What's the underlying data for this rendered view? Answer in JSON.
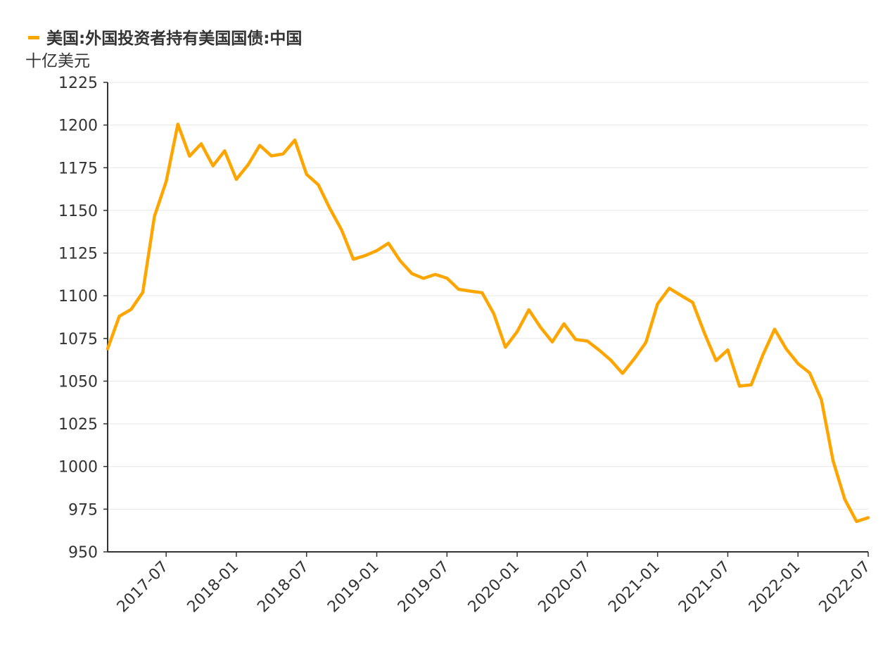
{
  "chart_data": {
    "type": "line",
    "title": "",
    "legend": {
      "placement": "top-left",
      "entries": [
        "美国:外国投资者持有美国国债:中国"
      ]
    },
    "ylabel": "十亿美元",
    "xlabel": "",
    "ylim": [
      950,
      1225
    ],
    "yticks": [
      "950",
      "975",
      "1000",
      "1025",
      "1050",
      "1075",
      "1100",
      "1125",
      "1150",
      "1175",
      "1200",
      "1225"
    ],
    "grid": true,
    "xticks": [
      "2017-07",
      "2018-01",
      "2018-07",
      "2019-01",
      "2019-07",
      "2020-01",
      "2020-07",
      "2021-01",
      "2021-07",
      "2022-01",
      "2022-07"
    ],
    "series": [
      {
        "name": "美国:外国投资者持有美国国债:中国",
        "color": "#FFA500",
        "x": [
          "2017-02",
          "2017-03",
          "2017-04",
          "2017-05",
          "2017-06",
          "2017-07",
          "2017-08",
          "2017-09",
          "2017-10",
          "2017-11",
          "2017-12",
          "2018-01",
          "2018-02",
          "2018-03",
          "2018-04",
          "2018-05",
          "2018-06",
          "2018-07",
          "2018-08",
          "2018-09",
          "2018-10",
          "2018-11",
          "2018-12",
          "2019-01",
          "2019-02",
          "2019-03",
          "2019-04",
          "2019-05",
          "2019-06",
          "2019-07",
          "2019-08",
          "2019-09",
          "2019-10",
          "2019-11",
          "2019-12",
          "2020-01",
          "2020-02",
          "2020-03",
          "2020-04",
          "2020-05",
          "2020-06",
          "2020-07",
          "2020-08",
          "2020-09",
          "2020-10",
          "2020-11",
          "2020-12",
          "2021-01",
          "2021-02",
          "2021-03",
          "2021-04",
          "2021-05",
          "2021-06",
          "2021-07",
          "2021-08",
          "2021-09",
          "2021-10",
          "2021-11",
          "2021-12",
          "2022-01",
          "2022-02",
          "2022-03",
          "2022-04",
          "2022-05",
          "2022-06",
          "2022-07"
        ],
        "values": [
          1069.0,
          1088.0,
          1092.0,
          1102.0,
          1146.5,
          1166.9,
          1200.5,
          1181.8,
          1189.0,
          1176.1,
          1184.9,
          1168.2,
          1176.7,
          1188.1,
          1181.9,
          1183.1,
          1191.2,
          1171.1,
          1165.0,
          1151.0,
          1138.5,
          1121.4,
          1123.5,
          1126.4,
          1130.8,
          1120.5,
          1113.0,
          1110.2,
          1112.5,
          1110.3,
          1103.8,
          1102.7,
          1101.8,
          1089.5,
          1069.9,
          1079.0,
          1091.8,
          1081.5,
          1073.0,
          1083.6,
          1074.4,
          1073.5,
          1068.2,
          1062.3,
          1054.5,
          1063.0,
          1072.6,
          1095.2,
          1104.4,
          1100.2,
          1096.1,
          1078.2,
          1062.0,
          1068.3,
          1047.1,
          1047.8,
          1065.3,
          1080.4,
          1068.8,
          1060.3,
          1054.8,
          1039.1,
          1003.3,
          980.8,
          967.8,
          970.0
        ]
      }
    ]
  }
}
